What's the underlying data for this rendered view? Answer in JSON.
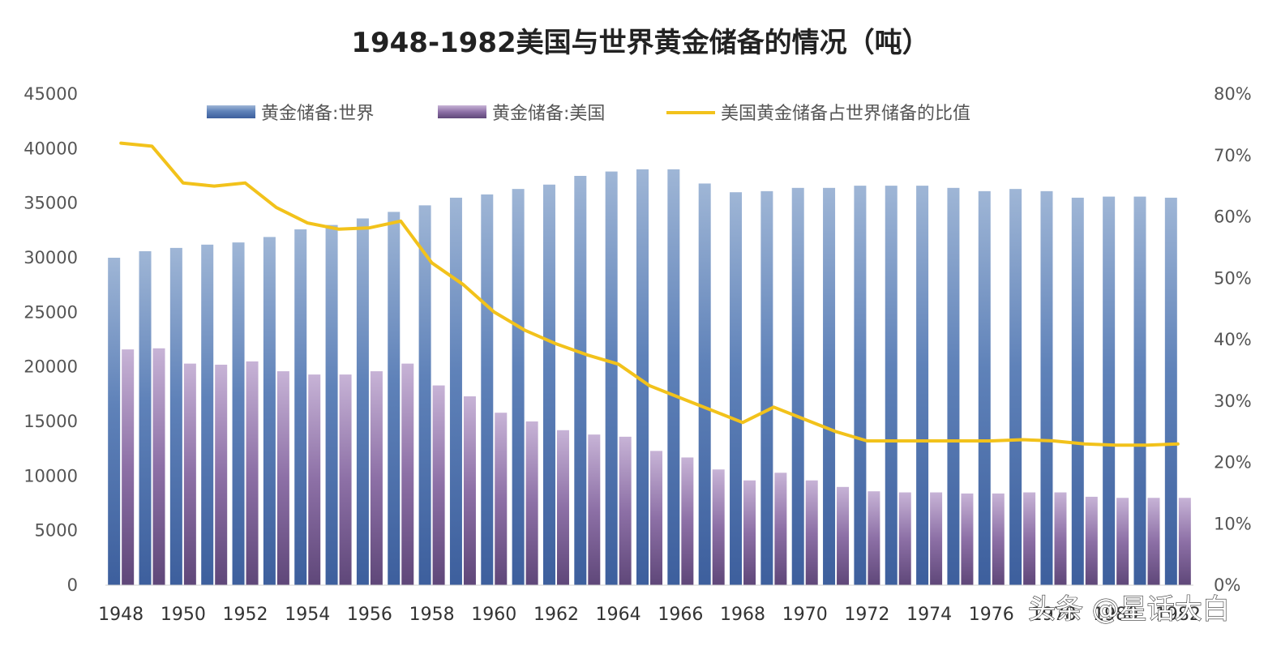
{
  "chart_data": {
    "type": "bar",
    "title": "1948-1982美国与世界黄金储备的情况（吨）",
    "categories": [
      "1948",
      "1949",
      "1950",
      "1951",
      "1952",
      "1953",
      "1954",
      "1955",
      "1956",
      "1957",
      "1958",
      "1959",
      "1960",
      "1961",
      "1962",
      "1963",
      "1964",
      "1965",
      "1966",
      "1967",
      "1968",
      "1969",
      "1970",
      "1971",
      "1972",
      "1973",
      "1974",
      "1975",
      "1976",
      "1977",
      "1978",
      "1979",
      "1980",
      "1981",
      "1982"
    ],
    "x_tick_labels": [
      "1948",
      "1950",
      "1952",
      "1954",
      "1956",
      "1958",
      "1960",
      "1962",
      "1964",
      "1966",
      "1968",
      "1970",
      "1972",
      "1974",
      "1976",
      "1978",
      "1980",
      "1982"
    ],
    "series": [
      {
        "name": "黄金储备:世界",
        "type": "bar",
        "axis": "left",
        "values": [
          30000,
          30600,
          30900,
          31200,
          31400,
          31900,
          32600,
          33000,
          33600,
          34200,
          34800,
          35500,
          35800,
          36300,
          36700,
          37500,
          37900,
          38100,
          38100,
          36800,
          36000,
          36100,
          36400,
          36400,
          36600,
          36600,
          36600,
          36400,
          36100,
          36300,
          36100,
          35500,
          35600,
          35600,
          35500
        ]
      },
      {
        "name": "黄金储备:美国",
        "type": "bar",
        "axis": "left",
        "values": [
          21600,
          21700,
          20300,
          20200,
          20500,
          19600,
          19300,
          19300,
          19600,
          20300,
          18300,
          17300,
          15800,
          15000,
          14200,
          13800,
          13600,
          12300,
          11700,
          10600,
          9600,
          10300,
          9600,
          9000,
          8600,
          8500,
          8500,
          8400,
          8400,
          8500,
          8500,
          8100,
          8000,
          8000,
          8000
        ]
      },
      {
        "name": "美国黄金储备占世界储备的比值",
        "type": "line",
        "axis": "right",
        "values": [
          0.72,
          0.715,
          0.655,
          0.65,
          0.655,
          0.615,
          0.59,
          0.58,
          0.582,
          0.593,
          0.525,
          0.49,
          0.445,
          0.415,
          0.393,
          0.375,
          0.36,
          0.325,
          0.305,
          0.285,
          0.265,
          0.29,
          0.27,
          0.25,
          0.235,
          0.235,
          0.235,
          0.235,
          0.235,
          0.237,
          0.235,
          0.23,
          0.228,
          0.228,
          0.23
        ]
      }
    ],
    "y_left": {
      "min": 0,
      "max": 45000,
      "ticks": [
        "0",
        "5000",
        "10000",
        "15000",
        "20000",
        "25000",
        "30000",
        "35000",
        "40000",
        "45000"
      ]
    },
    "y_right": {
      "min": 0,
      "max": 0.8,
      "ticks": [
        "0%",
        "10%",
        "20%",
        "30%",
        "40%",
        "50%",
        "60%",
        "70%",
        "80%"
      ]
    },
    "grid": false,
    "legend_position": "top",
    "colors": {
      "world_bar": "#4f72a8",
      "us_bar": "#7c5f93",
      "ratio_line": "#f2c21b"
    }
  },
  "watermark": "头条 @星话大白"
}
